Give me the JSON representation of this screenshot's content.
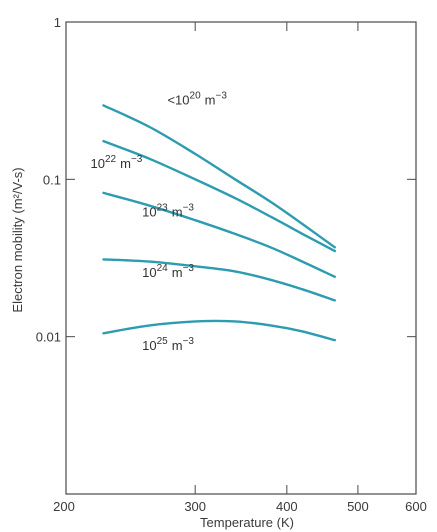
{
  "chart_data": {
    "type": "line",
    "title": "",
    "xlabel": "Temperature (K)",
    "ylabel": "Electron mobility (m²/V-s)",
    "x_scale": "log",
    "y_scale": "log",
    "xlim": [
      200,
      600
    ],
    "ylim": [
      0.001,
      1
    ],
    "x_ticks": [
      {
        "value": 200,
        "label": "200"
      },
      {
        "value": 300,
        "label": "300"
      },
      {
        "value": 400,
        "label": "400"
      },
      {
        "value": 500,
        "label": "500"
      },
      {
        "value": 600,
        "label": "600"
      }
    ],
    "y_ticks": [
      {
        "value": 1,
        "label": "1"
      },
      {
        "value": 0.1,
        "label": "0.1"
      },
      {
        "value": 0.01,
        "label": "0.01"
      }
    ],
    "grid": false,
    "legend": "none",
    "line_color": "#2d9bb0",
    "series": [
      {
        "label_base": "<10",
        "label_exp": "20",
        "label_unit": "m",
        "label_unit_exp": "−3",
        "label_at": [
          275,
          0.3
        ],
        "points": [
          [
            225,
            0.295
          ],
          [
            260,
            0.215
          ],
          [
            300,
            0.145
          ],
          [
            340,
            0.1
          ],
          [
            380,
            0.072
          ],
          [
            420,
            0.052
          ],
          [
            465,
            0.037
          ]
        ]
      },
      {
        "label_base": "10",
        "label_exp": "22",
        "label_unit": "m",
        "label_unit_exp": "−3",
        "label_at": [
          216,
          0.118
        ],
        "points": [
          [
            225,
            0.175
          ],
          [
            260,
            0.135
          ],
          [
            300,
            0.1
          ],
          [
            340,
            0.076
          ],
          [
            380,
            0.058
          ],
          [
            420,
            0.045
          ],
          [
            465,
            0.035
          ]
        ]
      },
      {
        "label_base": "10",
        "label_exp": "23",
        "label_unit": "m",
        "label_unit_exp": "−3",
        "label_at": [
          254,
          0.058
        ],
        "points": [
          [
            225,
            0.082
          ],
          [
            260,
            0.068
          ],
          [
            300,
            0.055
          ],
          [
            340,
            0.045
          ],
          [
            380,
            0.037
          ],
          [
            420,
            0.03
          ],
          [
            465,
            0.024
          ]
        ]
      },
      {
        "label_base": "10",
        "label_exp": "24",
        "label_unit": "m",
        "label_unit_exp": "−3",
        "label_at": [
          254,
          0.024
        ],
        "points": [
          [
            225,
            0.031
          ],
          [
            260,
            0.03
          ],
          [
            300,
            0.028
          ],
          [
            340,
            0.026
          ],
          [
            380,
            0.023
          ],
          [
            420,
            0.02
          ],
          [
            465,
            0.017
          ]
        ]
      },
      {
        "label_base": "10",
        "label_exp": "25",
        "label_unit": "m",
        "label_unit_exp": "−3",
        "label_at": [
          254,
          0.0082
        ],
        "points": [
          [
            225,
            0.0105
          ],
          [
            260,
            0.0118
          ],
          [
            300,
            0.0125
          ],
          [
            340,
            0.0125
          ],
          [
            380,
            0.0118
          ],
          [
            420,
            0.0108
          ],
          [
            465,
            0.0095
          ]
        ]
      }
    ]
  }
}
